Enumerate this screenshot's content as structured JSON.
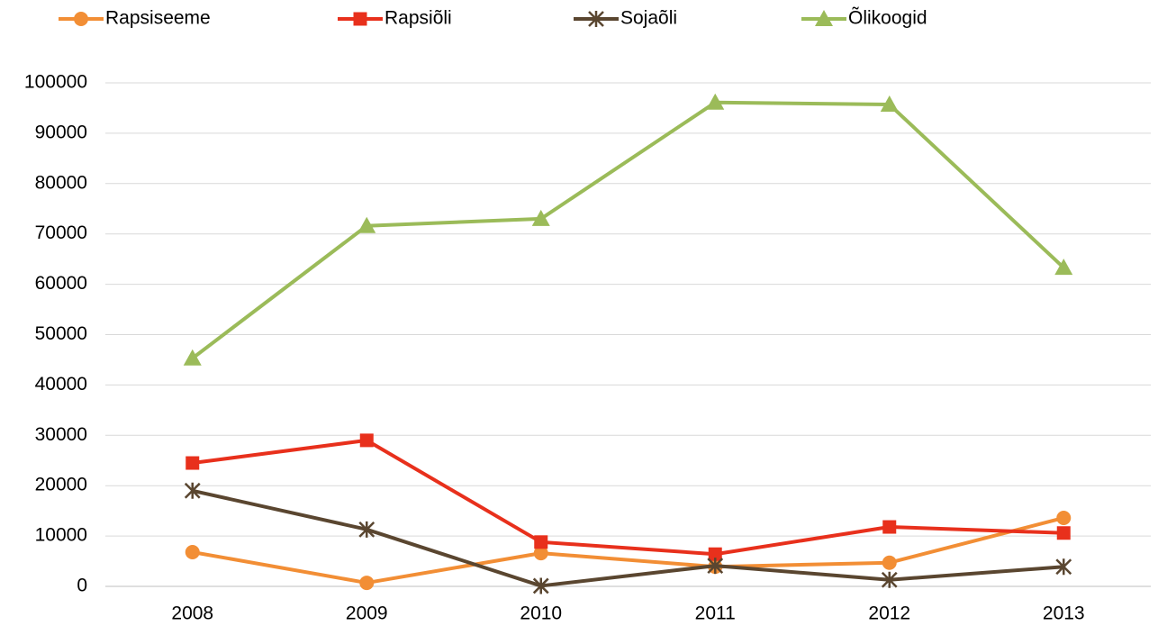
{
  "chart_data": {
    "type": "line",
    "categories": [
      "2008",
      "2009",
      "2010",
      "2011",
      "2012",
      "2013"
    ],
    "series": [
      {
        "name": "Rapsiseeme",
        "color": "#f28e35",
        "marker": "circle",
        "values": [
          6800,
          700,
          6600,
          3900,
          4700,
          13600
        ]
      },
      {
        "name": "Rapsiõli",
        "color": "#e8301c",
        "marker": "square",
        "values": [
          24500,
          29000,
          8800,
          6400,
          11800,
          10600
        ]
      },
      {
        "name": "Sojaõli",
        "color": "#5a4630",
        "marker": "star",
        "values": [
          19000,
          11300,
          100,
          4100,
          1300,
          3900
        ]
      },
      {
        "name": "Õlikoogid",
        "color": "#9bbb59",
        "marker": "triangle",
        "values": [
          45300,
          71600,
          73000,
          96100,
          95700,
          63300
        ]
      }
    ],
    "ylim": [
      0,
      100000
    ],
    "yticks": [
      0,
      10000,
      20000,
      30000,
      40000,
      50000,
      60000,
      70000,
      80000,
      90000,
      100000
    ],
    "grid": true,
    "legend": "top"
  }
}
